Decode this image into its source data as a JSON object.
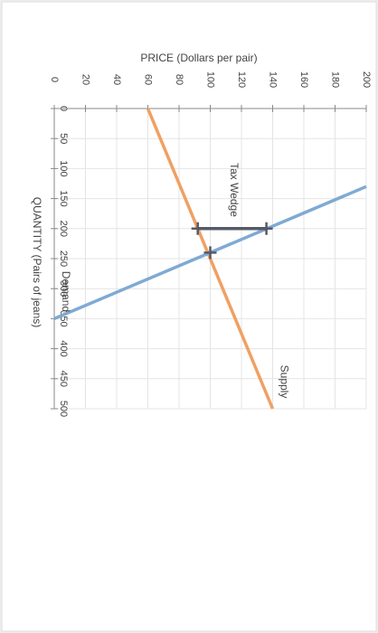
{
  "chart_data": {
    "type": "line",
    "title": "PRICE (Dollars per pair)",
    "x_label": "QUANTITY (Pairs of jeans)",
    "series": [
      {
        "name": "Supply",
        "color": "#f0a063",
        "x": [
          0,
          500
        ],
        "values": [
          60,
          140
        ]
      },
      {
        "name": "Demand",
        "color": "#7faad3",
        "x": [
          130,
          350
        ],
        "values": [
          200,
          0
        ]
      }
    ],
    "markers": {
      "x": [
        200,
        200,
        240
      ],
      "values": [
        92,
        136,
        100
      ]
    },
    "annotation": "Tax Wedge",
    "xlim": [
      0,
      500
    ],
    "xticks": [
      0,
      50,
      100,
      150,
      200,
      250,
      300,
      350,
      400,
      450,
      500
    ],
    "ylim": [
      0,
      200
    ],
    "yticks": [
      0,
      20,
      40,
      60,
      80,
      100,
      120,
      140,
      160,
      180,
      200
    ],
    "grid": true
  }
}
